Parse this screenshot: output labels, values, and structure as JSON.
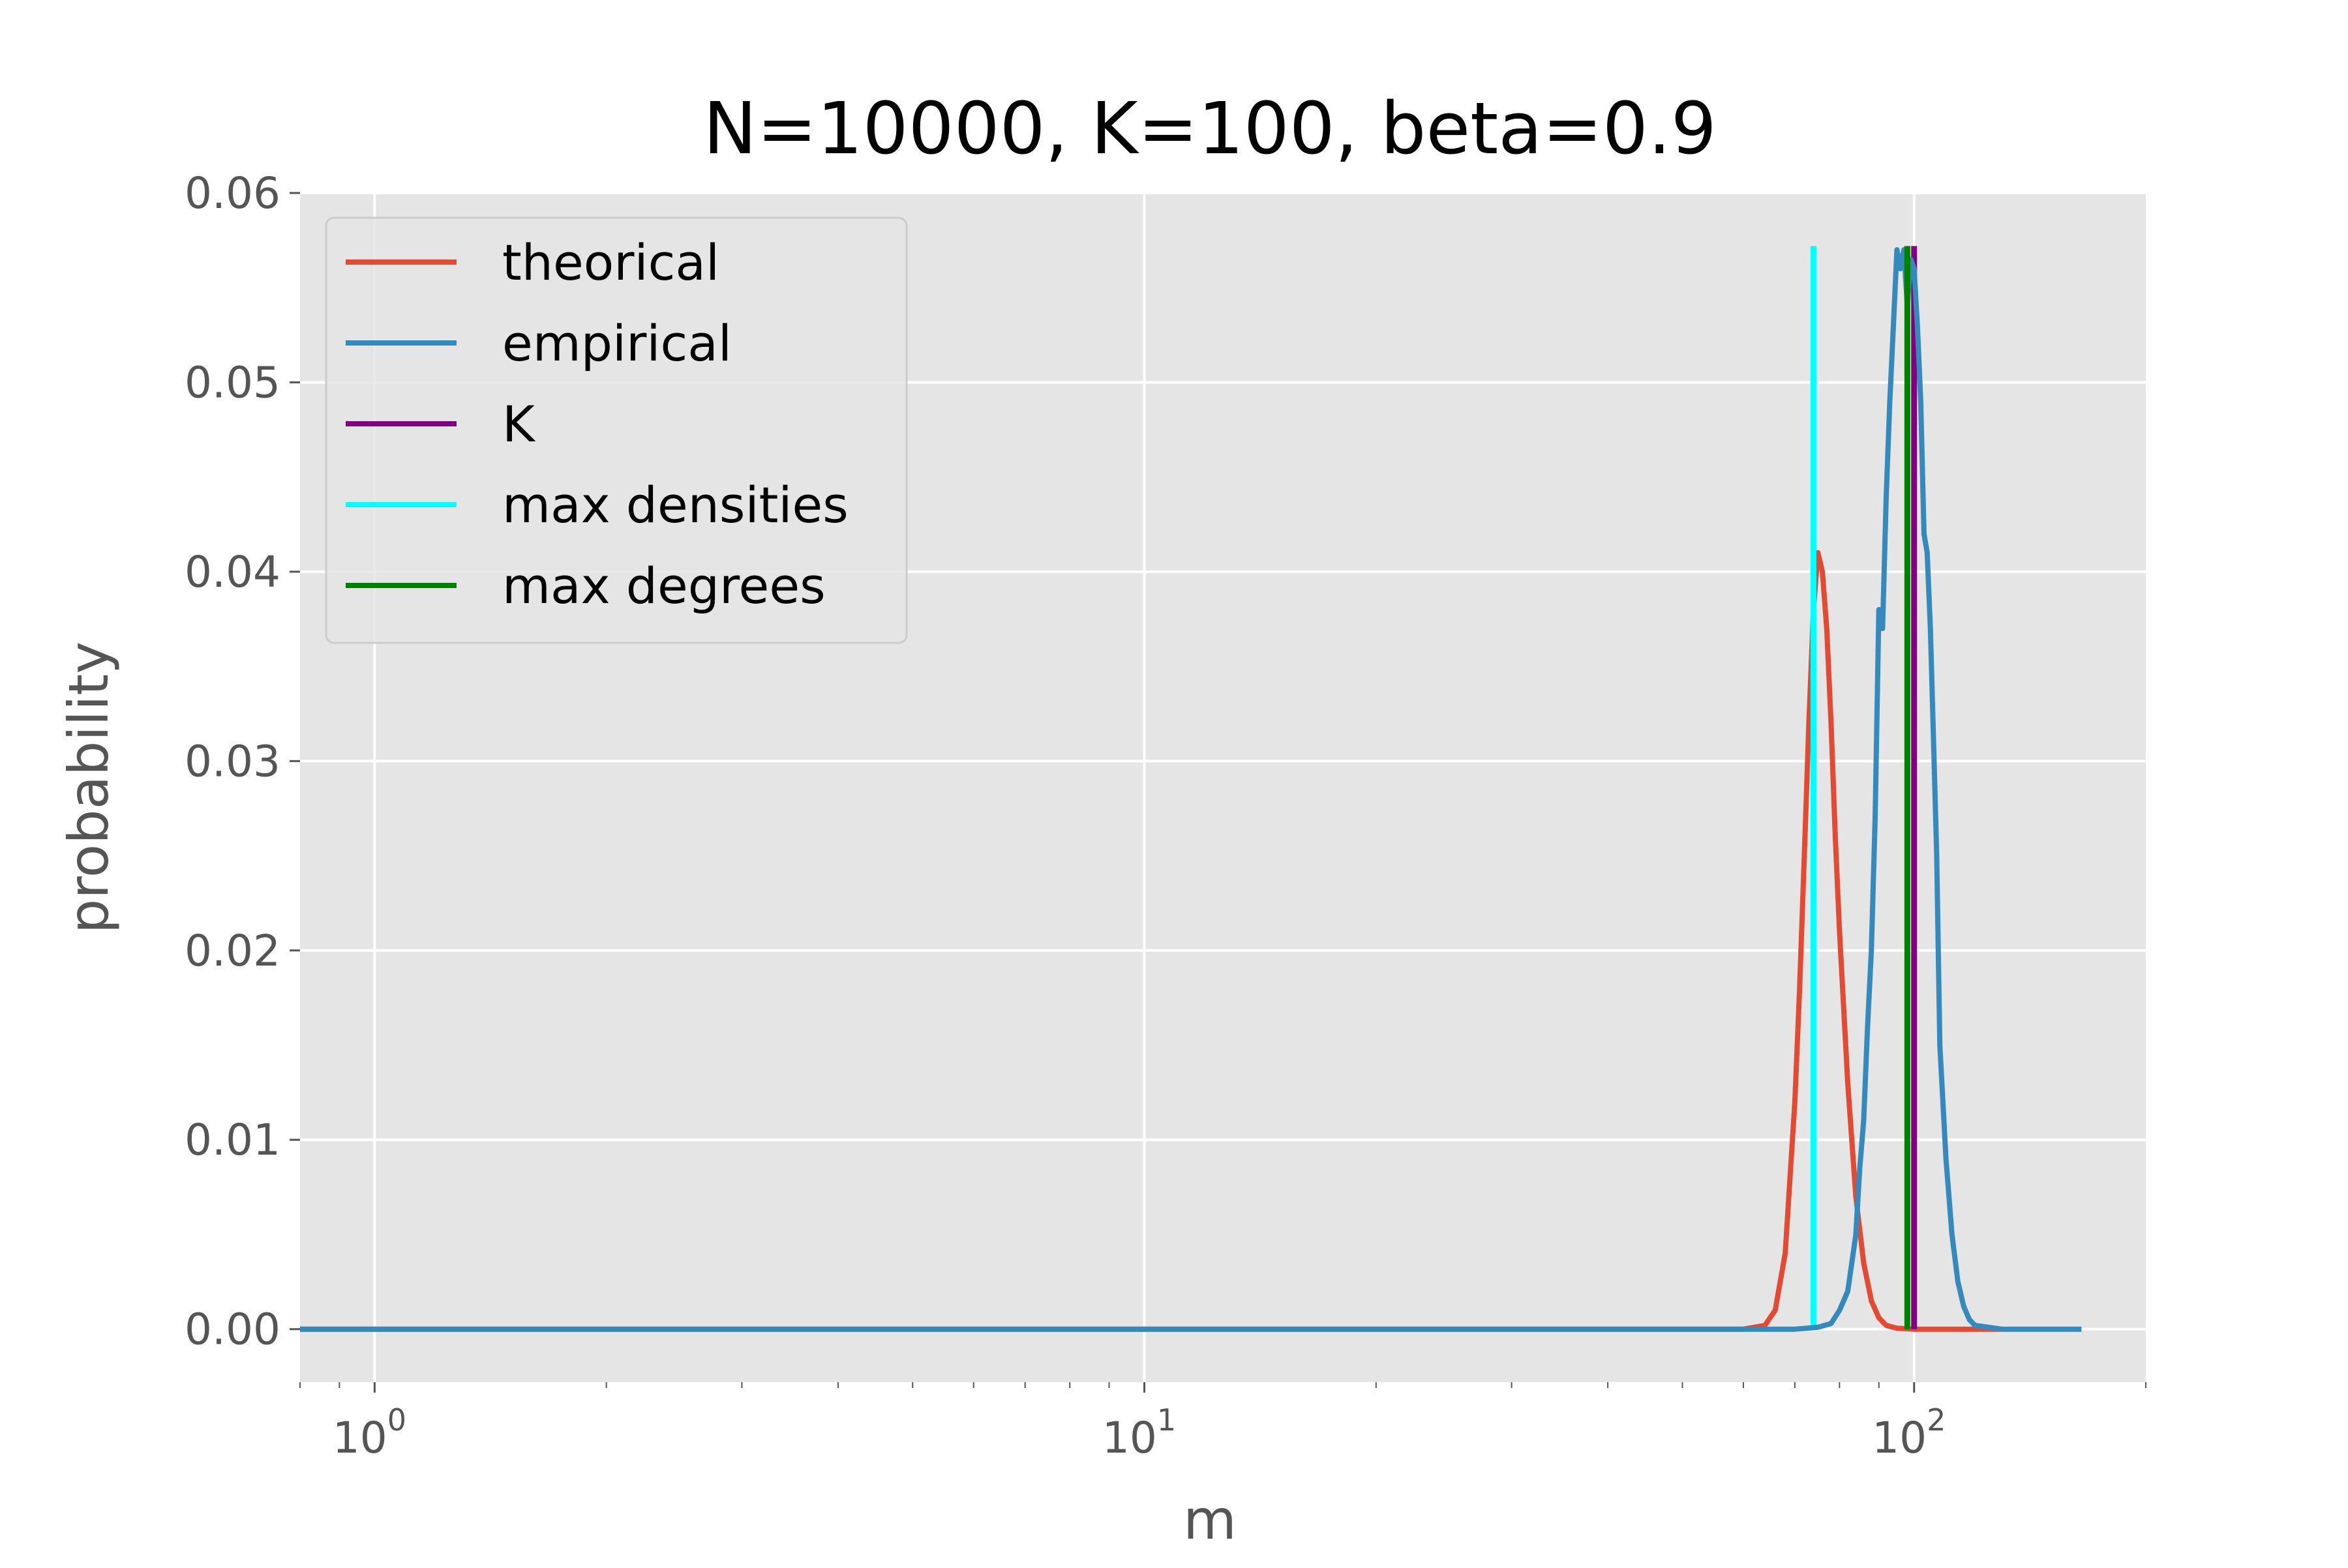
{
  "chart_data": {
    "type": "line",
    "title": "N=10000, K=100, beta=0.9",
    "xlabel": "m",
    "ylabel": "probability",
    "xscale": "log",
    "xlim": [
      0.8,
      200
    ],
    "ylim": [
      -0.0028,
      0.06
    ],
    "grid": true,
    "legend_position": "top-left",
    "x_ticks": [
      {
        "value": 1,
        "base": "10",
        "exp": "0"
      },
      {
        "value": 10,
        "base": "10",
        "exp": "1"
      },
      {
        "value": 100,
        "base": "10",
        "exp": "2"
      }
    ],
    "y_ticks": [
      {
        "value": 0.0,
        "label": "0.00"
      },
      {
        "value": 0.01,
        "label": "0.01"
      },
      {
        "value": 0.02,
        "label": "0.02"
      },
      {
        "value": 0.03,
        "label": "0.03"
      },
      {
        "value": 0.04,
        "label": "0.04"
      },
      {
        "value": 0.05,
        "label": "0.05"
      },
      {
        "value": 0.06,
        "label": "0.06"
      }
    ],
    "colors": {
      "theorical": "#e24a33",
      "empirical": "#348abd",
      "K": "#800080",
      "max_densities": "#00ffff",
      "max_degrees": "#008000"
    },
    "legend": [
      {
        "key": "theorical",
        "label": "theorical"
      },
      {
        "key": "empirical",
        "label": "empirical"
      },
      {
        "key": "K",
        "label": "K"
      },
      {
        "key": "max_densities",
        "label": "max densities"
      },
      {
        "key": "max_degrees",
        "label": "max degrees"
      }
    ],
    "series": [
      {
        "name": "theorical",
        "x": [
          0.8,
          1,
          2,
          5,
          10,
          20,
          40,
          60,
          64,
          66,
          68,
          70,
          71,
          72,
          73,
          74,
          75,
          76,
          77,
          78,
          79,
          80,
          82,
          84,
          86,
          88,
          90,
          92,
          95,
          100,
          110,
          120,
          130
        ],
        "y": [
          0,
          0,
          0,
          0,
          0,
          0,
          0,
          0,
          0.0002,
          0.001,
          0.004,
          0.012,
          0.018,
          0.025,
          0.032,
          0.038,
          0.041,
          0.04,
          0.037,
          0.032,
          0.026,
          0.021,
          0.013,
          0.007,
          0.0035,
          0.0015,
          0.0006,
          0.0002,
          5e-05,
          0,
          0,
          0,
          0
        ]
      },
      {
        "name": "empirical",
        "x": [
          0.8,
          1,
          2,
          5,
          10,
          20,
          40,
          70,
          75,
          78,
          80,
          82,
          84,
          85,
          86,
          87,
          88,
          89,
          90,
          91,
          92,
          93,
          94,
          95,
          96,
          97,
          98,
          99,
          100,
          101,
          102,
          103,
          104,
          105,
          106,
          107,
          108,
          110,
          112,
          114,
          116,
          118,
          120,
          125,
          130,
          140,
          150,
          165
        ],
        "y": [
          0,
          0,
          0,
          0,
          0,
          0,
          0,
          0,
          0.0001,
          0.0003,
          0.001,
          0.002,
          0.005,
          0.0085,
          0.011,
          0.016,
          0.02,
          0.027,
          0.038,
          0.037,
          0.044,
          0.049,
          0.053,
          0.057,
          0.056,
          0.057,
          0.054,
          0.0565,
          0.056,
          0.053,
          0.049,
          0.042,
          0.041,
          0.037,
          0.031,
          0.025,
          0.015,
          0.009,
          0.005,
          0.0025,
          0.0012,
          0.0005,
          0.0002,
          0.0001,
          0,
          0,
          0,
          0
        ]
      }
    ],
    "vlines": [
      {
        "key": "max_densities",
        "x": 74,
        "ymin": 0,
        "ymax": 0.0572
      },
      {
        "key": "K",
        "x": 100,
        "ymin": 0,
        "ymax": 0.0572
      },
      {
        "key": "max_degrees",
        "x": 98,
        "ymin": 0,
        "ymax": 0.0572
      }
    ]
  }
}
